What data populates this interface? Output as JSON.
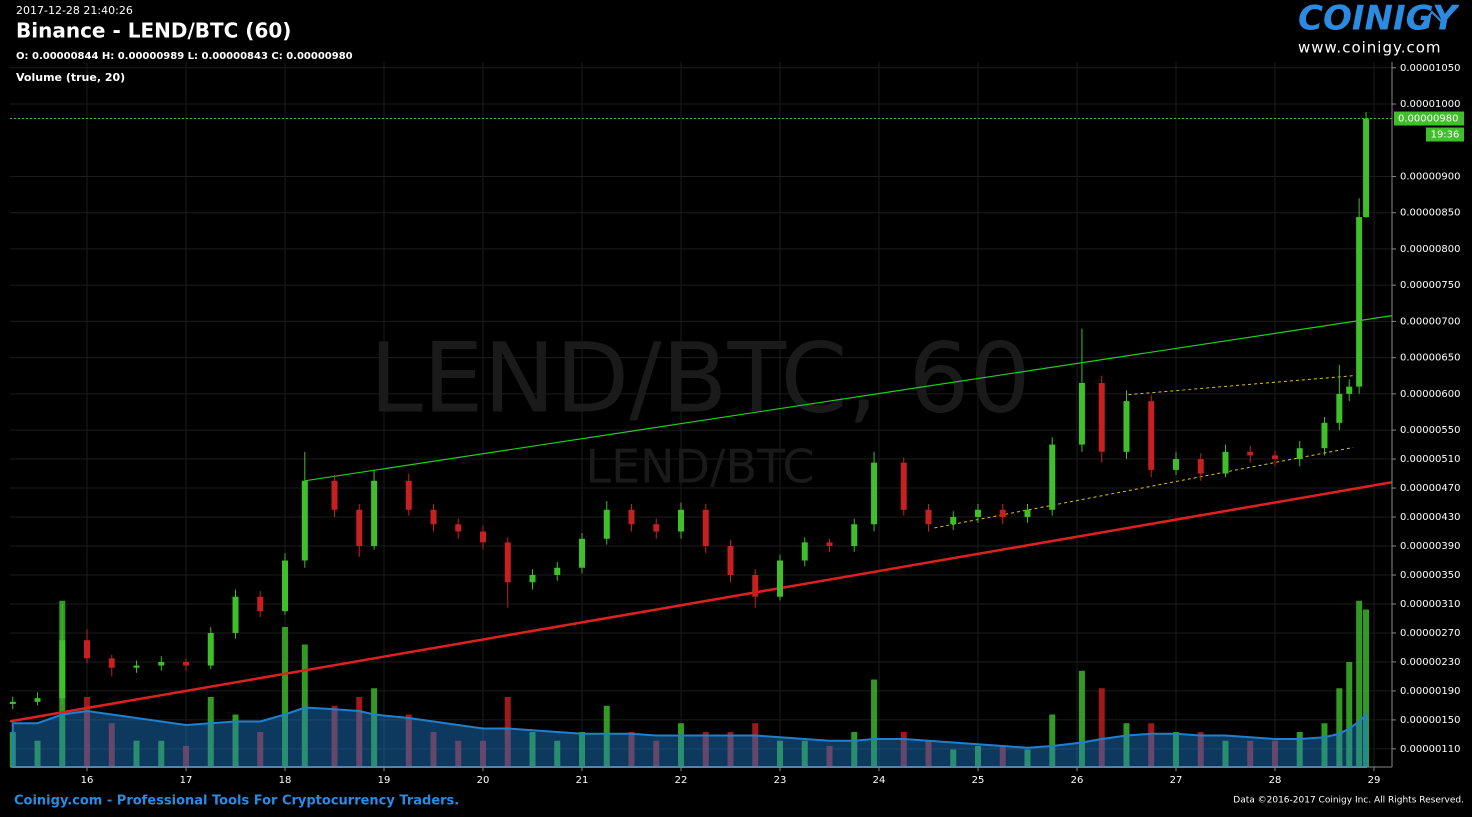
{
  "header": {
    "timestamp": "2017-12-28 21:40:26",
    "title": "Binance - LEND/BTC (60)",
    "ohlc": "O: 0.00000844 H: 0.00000989 L: 0.00000843 C: 0.00000980",
    "logo": "COINIGY",
    "url": "www.coinigy.com"
  },
  "chart_data": {
    "type": "candlestick",
    "watermark": "LEND/BTC, 60",
    "watermark_sub": "LEND/BTC",
    "volume_label": "Volume (true, 20)",
    "up_color": "#3fbf2a",
    "down_color": "#c62020",
    "volume_ma_color": "#1f7fd0",
    "grid": true,
    "x": [
      15.25,
      15.5,
      15.75,
      16.0,
      16.25,
      16.5,
      16.75,
      17.0,
      17.25,
      17.5,
      17.75,
      18.0,
      18.2,
      18.5,
      18.75,
      18.9,
      19.25,
      19.5,
      19.75,
      20.0,
      20.25,
      20.5,
      20.75,
      21.0,
      21.25,
      21.5,
      21.75,
      22.0,
      22.25,
      22.5,
      22.75,
      23.0,
      23.25,
      23.5,
      23.75,
      23.95,
      24.25,
      24.5,
      24.75,
      25.0,
      25.25,
      25.5,
      25.75,
      26.05,
      26.25,
      26.5,
      26.75,
      27.0,
      27.25,
      27.5,
      27.75,
      28.0,
      28.25,
      28.5,
      28.65,
      28.75,
      28.85,
      28.92
    ],
    "open": [
      1.72e-06,
      1.75e-06,
      1.8e-06,
      2.6e-06,
      2.35e-06,
      2.22e-06,
      2.25e-06,
      2.3e-06,
      2.25e-06,
      2.7e-06,
      3.2e-06,
      3e-06,
      3.7e-06,
      4.8e-06,
      4.4e-06,
      3.9e-06,
      4.8e-06,
      4.4e-06,
      4.2e-06,
      4.1e-06,
      3.95e-06,
      3.4e-06,
      3.5e-06,
      3.6e-06,
      4e-06,
      4.4e-06,
      4.2e-06,
      4.1e-06,
      4.4e-06,
      3.9e-06,
      3.5e-06,
      3.2e-06,
      3.7e-06,
      3.95e-06,
      3.9e-06,
      4.2e-06,
      5.05e-06,
      4.4e-06,
      4.2e-06,
      4.3e-06,
      4.4e-06,
      4.3e-06,
      4.4e-06,
      5.3e-06,
      6.15e-06,
      5.2e-06,
      5.9e-06,
      4.95e-06,
      5.1e-06,
      4.9e-06,
      5.2e-06,
      5.15e-06,
      5.1e-06,
      5.25e-06,
      5.6e-06,
      6e-06,
      6.1e-06,
      8.44e-06
    ],
    "high": [
      1.82e-06,
      1.88e-06,
      3.1e-06,
      2.75e-06,
      2.4e-06,
      2.32e-06,
      2.38e-06,
      2.35e-06,
      2.78e-06,
      3.3e-06,
      3.28e-06,
      3.8e-06,
      5.2e-06,
      4.88e-06,
      4.48e-06,
      4.95e-06,
      4.9e-06,
      4.48e-06,
      4.28e-06,
      4.18e-06,
      4.02e-06,
      3.58e-06,
      3.68e-06,
      4.08e-06,
      4.52e-06,
      4.48e-06,
      4.28e-06,
      4.5e-06,
      4.48e-06,
      3.98e-06,
      3.58e-06,
      3.78e-06,
      4.02e-06,
      4e-06,
      4.28e-06,
      5.2e-06,
      5.12e-06,
      4.48e-06,
      4.38e-06,
      4.48e-06,
      4.48e-06,
      4.48e-06,
      5.4e-06,
      6.9e-06,
      6.25e-06,
      6.05e-06,
      5.98e-06,
      5.2e-06,
      5.18e-06,
      5.3e-06,
      5.28e-06,
      5.22e-06,
      5.35e-06,
      5.68e-06,
      6.4e-06,
      6.2e-06,
      8.7e-06,
      9.89e-06
    ],
    "low": [
      1.65e-06,
      1.7e-06,
      1.72e-06,
      2.28e-06,
      2.1e-06,
      2.15e-06,
      2.18e-06,
      2.18e-06,
      2.2e-06,
      2.62e-06,
      2.92e-06,
      2.95e-06,
      3.6e-06,
      4.3e-06,
      3.75e-06,
      3.85e-06,
      4.32e-06,
      4.1e-06,
      4e-06,
      3.85e-06,
      3.05e-06,
      3.3e-06,
      3.42e-06,
      3.52e-06,
      3.92e-06,
      4.1e-06,
      4e-06,
      4e-06,
      3.8e-06,
      3.4e-06,
      3.05e-06,
      3.15e-06,
      3.62e-06,
      3.82e-06,
      3.82e-06,
      4.1e-06,
      4.32e-06,
      4.1e-06,
      4.12e-06,
      4.22e-06,
      4.2e-06,
      4.22e-06,
      4.32e-06,
      5.2e-06,
      5.05e-06,
      5.1e-06,
      4.85e-06,
      4.88e-06,
      4.8e-06,
      4.85e-06,
      5.05e-06,
      5e-06,
      5e-06,
      5.15e-06,
      5.5e-06,
      5.9e-06,
      6e-06,
      8.43e-06
    ],
    "close": [
      1.75e-06,
      1.8e-06,
      2.6e-06,
      2.35e-06,
      2.22e-06,
      2.25e-06,
      2.3e-06,
      2.25e-06,
      2.7e-06,
      3.2e-06,
      3e-06,
      3.7e-06,
      4.8e-06,
      4.4e-06,
      3.9e-06,
      4.8e-06,
      4.4e-06,
      4.2e-06,
      4.1e-06,
      3.95e-06,
      3.4e-06,
      3.5e-06,
      3.6e-06,
      4e-06,
      4.4e-06,
      4.2e-06,
      4.1e-06,
      4.4e-06,
      3.9e-06,
      3.5e-06,
      3.2e-06,
      3.7e-06,
      3.95e-06,
      3.9e-06,
      4.2e-06,
      5.05e-06,
      4.4e-06,
      4.2e-06,
      4.3e-06,
      4.4e-06,
      4.3e-06,
      4.4e-06,
      5.3e-06,
      6.15e-06,
      5.2e-06,
      5.9e-06,
      4.95e-06,
      5.1e-06,
      4.9e-06,
      5.2e-06,
      5.15e-06,
      5.1e-06,
      5.25e-06,
      5.6e-06,
      6e-06,
      6.1e-06,
      8.44e-06,
      9.8e-06
    ],
    "volume": [
      20,
      15,
      95,
      40,
      25,
      15,
      15,
      12,
      40,
      30,
      20,
      80,
      70,
      35,
      40,
      45,
      30,
      20,
      15,
      15,
      40,
      20,
      15,
      20,
      35,
      20,
      15,
      25,
      20,
      20,
      25,
      15,
      15,
      12,
      20,
      50,
      20,
      15,
      10,
      12,
      12,
      10,
      30,
      55,
      45,
      25,
      25,
      20,
      20,
      15,
      15,
      15,
      20,
      25,
      45,
      60,
      95,
      90
    ],
    "volume_ma": [
      25,
      25,
      30,
      32,
      30,
      28,
      26,
      24,
      25,
      26,
      26,
      30,
      34,
      33,
      32,
      30,
      28,
      26,
      24,
      22,
      22,
      21,
      20,
      19,
      19,
      19,
      18,
      18,
      18,
      18,
      18,
      17,
      16,
      15,
      15,
      16,
      16,
      15,
      14,
      13,
      12,
      11,
      12,
      14,
      16,
      18,
      19,
      19,
      18,
      18,
      17,
      16,
      16,
      17,
      19,
      22,
      26,
      30
    ],
    "vlim": [
      0,
      100
    ],
    "xlim": [
      15.222,
      29.182
    ],
    "xticks": [
      16,
      17,
      18,
      19,
      20,
      21,
      22,
      23,
      24,
      25,
      26,
      27,
      28,
      29
    ],
    "ylim": [
      8.5e-07,
      1.058e-05
    ],
    "yticks": [
      {
        "value": 1.05e-05,
        "label": "0.00001050"
      },
      {
        "value": 1e-05,
        "label": "0.00001000"
      },
      {
        "value": 9e-06,
        "label": "0.00000900"
      },
      {
        "value": 8.5e-06,
        "label": "0.00000850"
      },
      {
        "value": 8e-06,
        "label": "0.00000800"
      },
      {
        "value": 7.5e-06,
        "label": "0.00000750"
      },
      {
        "value": 7e-06,
        "label": "0.00000700"
      },
      {
        "value": 6.5e-06,
        "label": "0.00000650"
      },
      {
        "value": 6e-06,
        "label": "0.00000600"
      },
      {
        "value": 5.5e-06,
        "label": "0.00000550"
      },
      {
        "value": 5.1e-06,
        "label": "0.00000510"
      },
      {
        "value": 4.7e-06,
        "label": "0.00000470"
      },
      {
        "value": 4.3e-06,
        "label": "0.00000430"
      },
      {
        "value": 3.9e-06,
        "label": "0.00000390"
      },
      {
        "value": 3.5e-06,
        "label": "0.00000350"
      },
      {
        "value": 3.1e-06,
        "label": "0.00000310"
      },
      {
        "value": 2.7e-06,
        "label": "0.00000270"
      },
      {
        "value": 2.3e-06,
        "label": "0.00000230"
      },
      {
        "value": 1.9e-06,
        "label": "0.00000190"
      },
      {
        "value": 1.5e-06,
        "label": "0.00000150"
      },
      {
        "value": 1.1e-06,
        "label": "0.00000110"
      }
    ],
    "last_price": {
      "value": 9.8e-06,
      "label": "0.00000980"
    },
    "countdown": "19:36",
    "lines": [
      {
        "color": "#22cc22",
        "dashed": false,
        "width": 1.2,
        "x": [
          18.2,
          29.182
        ],
        "y": [
          4.8e-06,
          7.08e-06
        ]
      },
      {
        "color": "#e02020",
        "dashed": false,
        "width": 2.5,
        "x": [
          15.222,
          29.182
        ],
        "y": [
          1.48e-06,
          4.78e-06
        ]
      },
      {
        "color": "#e0c020",
        "dashed": true,
        "width": 1,
        "x": [
          26.52,
          28.79
        ],
        "y": [
          5.99e-06,
          6.25e-06
        ]
      },
      {
        "color": "#e0c020",
        "dashed": true,
        "width": 1,
        "x": [
          24.56,
          28.79
        ],
        "y": [
          4.15e-06,
          5.26e-06
        ]
      }
    ]
  },
  "footer": {
    "left": "Coinigy.com - Professional Tools For Cryptocurrency Traders.",
    "right": "Data ©2016-2017 Coinigy Inc. All Rights Reserved."
  }
}
